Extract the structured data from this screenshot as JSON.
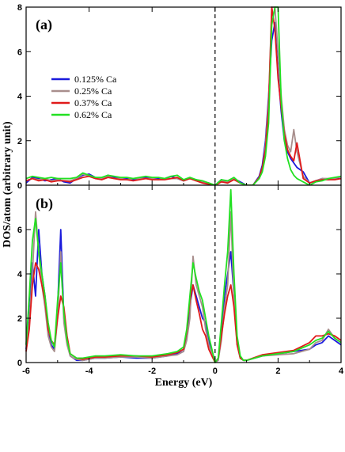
{
  "chart_data": [
    {
      "type": "line",
      "panel_label": "(a)",
      "xlim": [
        -6,
        4
      ],
      "ylim": [
        0,
        8
      ],
      "xticks": [
        -6,
        -4,
        -2,
        0,
        2,
        4
      ],
      "yticks": [
        0,
        2,
        4,
        6,
        8
      ],
      "fermi_level_x": 0,
      "legend": {
        "placement": "upper-left"
      },
      "series": [
        {
          "name": "0.125% Ca",
          "color": "#1a1adc",
          "key": "a_ca0125"
        },
        {
          "name": "0.25% Ca",
          "color": "#a88e8c",
          "key": "a_ca025"
        },
        {
          "name": "0.37% Ca",
          "color": "#e01a1a",
          "key": "a_ca037"
        },
        {
          "name": "0.62% Ca",
          "color": "#22e022",
          "key": "a_ca062"
        }
      ],
      "x": [
        -6.0,
        -5.8,
        -5.6,
        -5.4,
        -5.2,
        -5.0,
        -4.8,
        -4.6,
        -4.4,
        -4.2,
        -4.0,
        -3.8,
        -3.6,
        -3.4,
        -3.2,
        -3.0,
        -2.8,
        -2.6,
        -2.4,
        -2.2,
        -2.0,
        -1.8,
        -1.6,
        -1.4,
        -1.2,
        -1.0,
        -0.8,
        -0.6,
        -0.4,
        -0.2,
        0.0,
        0.2,
        0.4,
        0.6,
        0.8,
        1.0,
        1.2,
        1.4,
        1.5,
        1.6,
        1.7,
        1.8,
        1.9,
        2.0,
        2.1,
        2.2,
        2.3,
        2.4,
        2.5,
        2.6,
        2.8,
        3.0,
        3.2,
        3.4,
        3.6,
        3.8,
        4.0
      ],
      "values": {
        "a_ca0125": [
          0.1,
          0.35,
          0.3,
          0.2,
          0.25,
          0.3,
          0.15,
          0.1,
          0.3,
          0.45,
          0.5,
          0.35,
          0.3,
          0.45,
          0.35,
          0.3,
          0.3,
          0.25,
          0.3,
          0.35,
          0.3,
          0.3,
          0.3,
          0.4,
          0.3,
          0.2,
          0.3,
          0.25,
          0.15,
          0.1,
          0.0,
          0.25,
          0.1,
          0.3,
          0.15,
          0.0,
          0.0,
          0.4,
          0.9,
          2.0,
          4.0,
          6.5,
          7.3,
          5.0,
          3.3,
          2.0,
          1.5,
          1.2,
          1.0,
          0.8,
          0.6,
          0.1,
          0.2,
          0.3,
          0.25,
          0.3,
          0.3
        ],
        "a_ca025": [
          0.2,
          0.3,
          0.25,
          0.3,
          0.2,
          0.25,
          0.2,
          0.2,
          0.3,
          0.5,
          0.4,
          0.3,
          0.3,
          0.4,
          0.3,
          0.3,
          0.25,
          0.3,
          0.3,
          0.3,
          0.3,
          0.25,
          0.3,
          0.3,
          0.3,
          0.2,
          0.3,
          0.2,
          0.15,
          0.1,
          0.0,
          0.2,
          0.15,
          0.3,
          0.1,
          0.0,
          0.0,
          0.3,
          0.7,
          1.8,
          3.8,
          8.0,
          8.0,
          6.0,
          4.0,
          2.5,
          1.8,
          1.5,
          2.5,
          1.5,
          0.4,
          0.1,
          0.2,
          0.3,
          0.3,
          0.3,
          0.4
        ],
        "a_ca037": [
          0.2,
          0.3,
          0.2,
          0.25,
          0.15,
          0.2,
          0.2,
          0.15,
          0.25,
          0.35,
          0.4,
          0.3,
          0.25,
          0.35,
          0.3,
          0.25,
          0.25,
          0.2,
          0.25,
          0.3,
          0.25,
          0.25,
          0.25,
          0.3,
          0.35,
          0.2,
          0.3,
          0.2,
          0.1,
          0.05,
          0.0,
          0.15,
          0.1,
          0.25,
          0.1,
          0.0,
          0.0,
          0.35,
          0.8,
          1.6,
          3.5,
          8.0,
          7.0,
          4.8,
          3.5,
          2.3,
          1.6,
          1.3,
          1.1,
          1.9,
          0.3,
          0.1,
          0.2,
          0.25,
          0.25,
          0.25,
          0.3
        ],
        "a_ca062": [
          0.3,
          0.4,
          0.35,
          0.3,
          0.35,
          0.3,
          0.3,
          0.3,
          0.35,
          0.55,
          0.45,
          0.35,
          0.35,
          0.45,
          0.4,
          0.35,
          0.35,
          0.3,
          0.35,
          0.4,
          0.35,
          0.35,
          0.3,
          0.4,
          0.45,
          0.25,
          0.35,
          0.25,
          0.2,
          0.1,
          0.0,
          0.25,
          0.2,
          0.35,
          0.1,
          0.0,
          0.0,
          0.3,
          0.6,
          1.3,
          2.8,
          7.2,
          8.0,
          8.0,
          3.8,
          2.0,
          1.2,
          0.7,
          0.45,
          0.3,
          0.15,
          0.0,
          0.15,
          0.2,
          0.3,
          0.35,
          0.4
        ]
      }
    },
    {
      "type": "line",
      "panel_label": "(b)",
      "xlim": [
        -6,
        4
      ],
      "ylim": [
        0,
        8
      ],
      "xticks": [
        -6,
        -4,
        -2,
        0,
        2,
        4
      ],
      "yticks": [
        0,
        2,
        4,
        6
      ],
      "fermi_level_x": 0,
      "series": [
        {
          "name": "0.125% Ca",
          "color": "#1a1adc",
          "key": "b_ca0125"
        },
        {
          "name": "0.25% Ca",
          "color": "#a88e8c",
          "key": "b_ca025"
        },
        {
          "name": "0.37% Ca",
          "color": "#e01a1a",
          "key": "b_ca037"
        },
        {
          "name": "0.62% Ca",
          "color": "#22e022",
          "key": "b_ca062"
        }
      ],
      "x": [
        -6.0,
        -5.9,
        -5.8,
        -5.7,
        -5.6,
        -5.5,
        -5.4,
        -5.3,
        -5.2,
        -5.1,
        -5.0,
        -4.9,
        -4.8,
        -4.7,
        -4.6,
        -4.5,
        -4.4,
        -4.2,
        -4.0,
        -3.8,
        -3.5,
        -3.0,
        -2.5,
        -2.0,
        -1.5,
        -1.2,
        -1.0,
        -0.9,
        -0.8,
        -0.7,
        -0.6,
        -0.5,
        -0.4,
        -0.3,
        -0.2,
        -0.1,
        0.0,
        0.1,
        0.2,
        0.3,
        0.4,
        0.5,
        0.6,
        0.7,
        0.8,
        0.9,
        1.0,
        1.5,
        2.0,
        2.5,
        3.0,
        3.2,
        3.4,
        3.6,
        3.8,
        4.0
      ],
      "values": {
        "b_ca0125": [
          0.6,
          2.0,
          4.5,
          3.0,
          6.0,
          4.0,
          3.0,
          1.5,
          0.8,
          0.6,
          2.5,
          6.0,
          2.0,
          1.0,
          0.3,
          0.2,
          0.1,
          0.1,
          0.15,
          0.2,
          0.2,
          0.25,
          0.2,
          0.2,
          0.3,
          0.4,
          0.5,
          1.2,
          2.5,
          3.5,
          3.0,
          2.5,
          2.0,
          1.8,
          1.0,
          0.5,
          0.0,
          0.1,
          1.5,
          3.0,
          4.0,
          5.0,
          3.0,
          1.0,
          0.2,
          0.1,
          0.1,
          0.3,
          0.4,
          0.5,
          0.6,
          0.8,
          0.9,
          1.2,
          1.0,
          0.8
        ],
        "b_ca025": [
          0.5,
          1.8,
          4.0,
          6.8,
          5.0,
          3.5,
          2.5,
          1.2,
          0.7,
          0.5,
          2.0,
          5.0,
          1.8,
          0.8,
          0.3,
          0.2,
          0.15,
          0.1,
          0.15,
          0.2,
          0.2,
          0.25,
          0.25,
          0.2,
          0.3,
          0.35,
          0.5,
          1.0,
          2.0,
          4.8,
          3.5,
          3.0,
          2.5,
          1.5,
          0.8,
          0.4,
          0.0,
          0.1,
          1.0,
          2.5,
          3.5,
          6.8,
          2.8,
          0.8,
          0.2,
          0.1,
          0.1,
          0.3,
          0.35,
          0.4,
          0.6,
          0.9,
          1.0,
          1.5,
          1.1,
          0.9
        ],
        "b_ca037": [
          0.5,
          1.5,
          3.5,
          4.5,
          4.2,
          3.5,
          2.8,
          1.5,
          1.0,
          0.8,
          2.0,
          3.0,
          2.5,
          1.2,
          0.4,
          0.3,
          0.2,
          0.15,
          0.2,
          0.25,
          0.25,
          0.3,
          0.3,
          0.25,
          0.35,
          0.45,
          0.6,
          1.4,
          2.8,
          3.5,
          2.8,
          2.2,
          1.5,
          1.2,
          0.6,
          0.3,
          0.0,
          0.2,
          1.2,
          2.2,
          3.0,
          3.5,
          2.5,
          0.8,
          0.2,
          0.1,
          0.1,
          0.35,
          0.45,
          0.55,
          0.9,
          1.2,
          1.2,
          1.3,
          1.2,
          1.0
        ],
        "b_ca062": [
          0.8,
          3.0,
          5.5,
          6.5,
          5.0,
          4.0,
          3.0,
          1.8,
          1.0,
          0.7,
          2.8,
          4.5,
          2.2,
          1.0,
          0.4,
          0.3,
          0.2,
          0.2,
          0.25,
          0.3,
          0.3,
          0.35,
          0.3,
          0.3,
          0.4,
          0.5,
          0.7,
          1.5,
          3.0,
          4.5,
          3.8,
          3.2,
          2.8,
          2.0,
          1.2,
          0.6,
          0.0,
          0.2,
          1.8,
          3.5,
          5.0,
          7.8,
          4.0,
          1.2,
          0.3,
          0.1,
          0.1,
          0.3,
          0.4,
          0.5,
          0.8,
          1.0,
          1.1,
          1.4,
          1.1,
          0.9
        ]
      }
    }
  ],
  "axes": {
    "xlabel": "Energy (eV)",
    "ylabel": "DOS/atom (arbitrary unit)"
  }
}
